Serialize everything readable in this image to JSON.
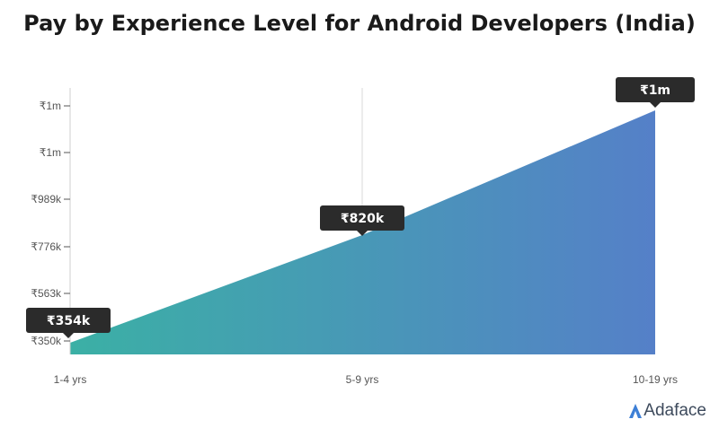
{
  "chart_data": {
    "type": "area",
    "title": "Pay by Experience Level for Android Developers (India)",
    "xlabel": "",
    "ylabel": "",
    "categories": [
      "1-4 yrs",
      "5-9 yrs",
      "10-19 yrs"
    ],
    "values": [
      354000,
      820000,
      1000000
    ],
    "data_labels": [
      "₹354k",
      "₹820k",
      "₹1m"
    ],
    "y_ticks": [
      350000,
      563000,
      776000,
      989000,
      1200000,
      1420000
    ],
    "y_tick_labels": [
      "₹350k",
      "₹563k",
      "₹776k",
      "₹989k",
      "₹1m",
      "₹1m"
    ],
    "gradient_colors": [
      "#3bb0a5",
      "#5580c8"
    ],
    "label_background": "#2b2b2b",
    "grid": false,
    "legend": "none"
  },
  "brand": {
    "name": "Adaface",
    "color": "#3d7fd6"
  }
}
